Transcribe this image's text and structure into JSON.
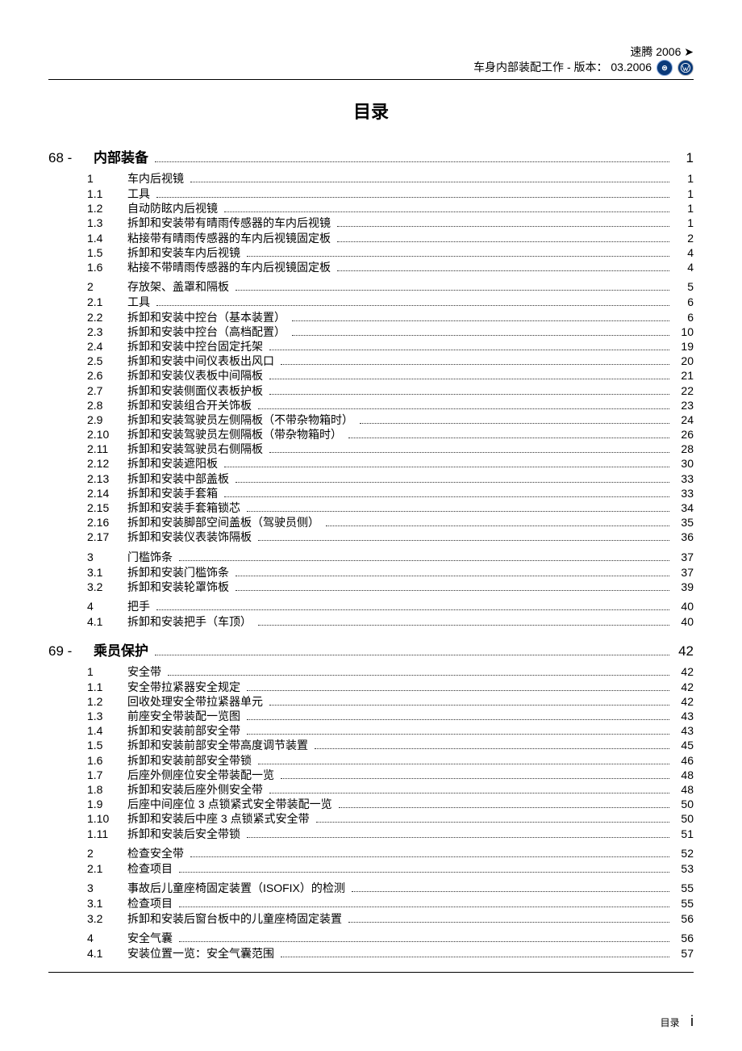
{
  "header": {
    "line1": "速腾 2006 ➤",
    "line2_text": "车身内部装配工作 - 版本： 03.2006"
  },
  "title": "目录",
  "footer": {
    "label": "目录",
    "page": "i"
  },
  "chapters": [
    {
      "prefix": "68 -",
      "title": "内部装备",
      "page": "1",
      "groups": [
        {
          "num": "1",
          "title": "车内后视镜",
          "page": "1",
          "items": [
            {
              "num": "1.1",
              "title": "工具",
              "page": "1"
            },
            {
              "num": "1.2",
              "title": "自动防眩内后视镜",
              "page": "1"
            },
            {
              "num": "1.3",
              "title": "拆卸和安装带有晴雨传感器的车内后视镜",
              "page": "1"
            },
            {
              "num": "1.4",
              "title": "粘接带有晴雨传感器的车内后视镜固定板",
              "page": "2"
            },
            {
              "num": "1.5",
              "title": "拆卸和安装车内后视镜",
              "page": "4"
            },
            {
              "num": "1.6",
              "title": "粘接不带晴雨传感器的车内后视镜固定板",
              "page": "4"
            }
          ]
        },
        {
          "num": "2",
          "title": "存放架、盖罩和隔板",
          "page": "5",
          "items": [
            {
              "num": "2.1",
              "title": "工具",
              "page": "6"
            },
            {
              "num": "2.2",
              "title": "拆卸和安装中控台（基本装置）",
              "page": "6"
            },
            {
              "num": "2.3",
              "title": "拆卸和安装中控台（高档配置）",
              "page": "10"
            },
            {
              "num": "2.4",
              "title": "拆卸和安装中控台固定托架",
              "page": "19"
            },
            {
              "num": "2.5",
              "title": "拆卸和安装中间仪表板出风口",
              "page": "20"
            },
            {
              "num": "2.6",
              "title": "拆卸和安装仪表板中间隔板",
              "page": "21"
            },
            {
              "num": "2.7",
              "title": "拆卸和安装侧面仪表板护板",
              "page": "22"
            },
            {
              "num": "2.8",
              "title": "拆卸和安装组合开关饰板",
              "page": "23"
            },
            {
              "num": "2.9",
              "title": "拆卸和安装驾驶员左侧隔板（不带杂物箱时）",
              "page": "24"
            },
            {
              "num": "2.10",
              "title": "拆卸和安装驾驶员左侧隔板（带杂物箱时）",
              "page": "26"
            },
            {
              "num": "2.11",
              "title": "拆卸和安装驾驶员右侧隔板",
              "page": "28"
            },
            {
              "num": "2.12",
              "title": "拆卸和安装遮阳板",
              "page": "30"
            },
            {
              "num": "2.13",
              "title": "拆卸和安装中部盖板",
              "page": "33"
            },
            {
              "num": "2.14",
              "title": "拆卸和安装手套箱",
              "page": "33"
            },
            {
              "num": "2.15",
              "title": "拆卸和安装手套箱锁芯",
              "page": "34"
            },
            {
              "num": "2.16",
              "title": "拆卸和安装脚部空间盖板（驾驶员侧）",
              "page": "35"
            },
            {
              "num": "2.17",
              "title": "拆卸和安装仪表装饰隔板",
              "page": "36"
            }
          ]
        },
        {
          "num": "3",
          "title": "门槛饰条",
          "page": "37",
          "items": [
            {
              "num": "3.1",
              "title": "拆卸和安装门槛饰条",
              "page": "37"
            },
            {
              "num": "3.2",
              "title": "拆卸和安装轮罩饰板",
              "page": "39"
            }
          ]
        },
        {
          "num": "4",
          "title": "把手",
          "page": "40",
          "items": [
            {
              "num": "4.1",
              "title": "拆卸和安装把手（车顶）",
              "page": "40"
            }
          ]
        }
      ]
    },
    {
      "prefix": "69 -",
      "title": "乘员保护",
      "page": "42",
      "groups": [
        {
          "num": "1",
          "title": "安全带",
          "page": "42",
          "items": [
            {
              "num": "1.1",
              "title": "安全带拉紧器安全规定",
              "page": "42"
            },
            {
              "num": "1.2",
              "title": "回收处理安全带拉紧器单元",
              "page": "42"
            },
            {
              "num": "1.3",
              "title": "前座安全带装配一览图",
              "page": "43"
            },
            {
              "num": "1.4",
              "title": "拆卸和安装前部安全带",
              "page": "43"
            },
            {
              "num": "1.5",
              "title": "拆卸和安装前部安全带高度调节装置",
              "page": "45"
            },
            {
              "num": "1.6",
              "title": "拆卸和安装前部安全带锁",
              "page": "46"
            },
            {
              "num": "1.7",
              "title": "后座外侧座位安全带装配一览",
              "page": "48"
            },
            {
              "num": "1.8",
              "title": "拆卸和安装后座外侧安全带",
              "page": "48"
            },
            {
              "num": "1.9",
              "title": "后座中间座位 3 点锁紧式安全带装配一览",
              "page": "50"
            },
            {
              "num": "1.10",
              "title": "拆卸和安装后中座 3 点锁紧式安全带",
              "page": "50"
            },
            {
              "num": "1.11",
              "title": "拆卸和安装后安全带锁",
              "page": "51"
            }
          ]
        },
        {
          "num": "2",
          "title": "检查安全带",
          "page": "52",
          "items": [
            {
              "num": "2.1",
              "title": "检查项目",
              "page": "53"
            }
          ]
        },
        {
          "num": "3",
          "title": "事故后儿童座椅固定装置（ISOFIX）的检测",
          "page": "55",
          "items": [
            {
              "num": "3.1",
              "title": "检查项目",
              "page": "55"
            },
            {
              "num": "3.2",
              "title": "拆卸和安装后窗台板中的儿童座椅固定装置",
              "page": "56"
            }
          ]
        },
        {
          "num": "4",
          "title": "安全气囊",
          "page": "56",
          "items": [
            {
              "num": "4.1",
              "title": "安装位置一览：安全气囊范围",
              "page": "57"
            }
          ]
        }
      ]
    }
  ]
}
